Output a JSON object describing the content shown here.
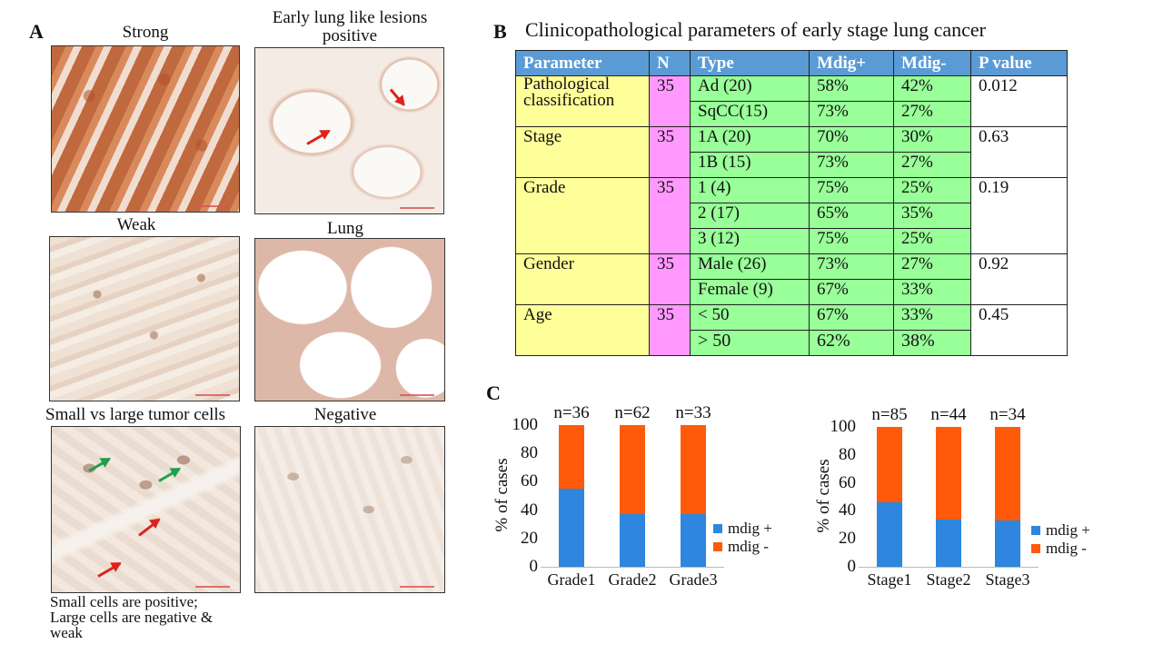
{
  "panel_a": {
    "letter": "A",
    "captions": {
      "strong": "Strong",
      "early": "Early lung like lesions positive",
      "weak": "Weak",
      "lung": "Lung",
      "small_large": "Small vs large tumor cells",
      "negative": "Negative"
    },
    "note_line1": "Small cells are positive;",
    "note_line2": "Large cells are negative &",
    "note_line3": "weak"
  },
  "panel_b": {
    "letter": "B",
    "title": "Clinicopathological parameters of early stage lung cancer",
    "headers": [
      "Parameter",
      "N",
      "Type",
      "Mdig+",
      "Mdig-",
      "P value"
    ],
    "groups": [
      {
        "parameter": "Pathological classification",
        "n": "35",
        "p": "0.012",
        "rows": [
          {
            "type": "Ad (20)",
            "plus": "58%",
            "minus": "42%"
          },
          {
            "type": "SqCC(15)",
            "plus": "73%",
            "minus": "27%"
          }
        ]
      },
      {
        "parameter": "Stage",
        "n": "35",
        "p": "0.63",
        "rows": [
          {
            "type": "1A (20)",
            "plus": "70%",
            "minus": "30%"
          },
          {
            "type": "1B (15)",
            "plus": "73%",
            "minus": "27%"
          }
        ]
      },
      {
        "parameter": "Grade",
        "n": "35",
        "p": "0.19",
        "rows": [
          {
            "type": "1 (4)",
            "plus": "75%",
            "minus": "25%"
          },
          {
            "type": "2 (17)",
            "plus": "65%",
            "minus": "35%"
          },
          {
            "type": "3 (12)",
            "plus": "75%",
            "minus": "25%"
          }
        ]
      },
      {
        "parameter": "Gender",
        "n": "35",
        "p": "0.92",
        "rows": [
          {
            "type": "Male (26)",
            "plus": "73%",
            "minus": "27%"
          },
          {
            "type": "Female (9)",
            "plus": "67%",
            "minus": "33%"
          }
        ]
      },
      {
        "parameter": "Age",
        "n": "35",
        "p": "0.45",
        "rows": [
          {
            "type": "< 50",
            "plus": "67%",
            "minus": "33%"
          },
          {
            "type": "> 50",
            "plus": "62%",
            "minus": "38%"
          }
        ]
      }
    ]
  },
  "panel_c": {
    "letter": "C"
  },
  "colors": {
    "mdig_plus": "#2e86de",
    "mdig_minus": "#ff5a0a"
  },
  "chart_data": [
    {
      "type": "bar",
      "stacked": true,
      "categories": [
        "Grade1",
        "Grade2",
        "Grade3"
      ],
      "n_labels": [
        "n=36",
        "n=62",
        "n=33"
      ],
      "series": [
        {
          "name": "mdig +",
          "values": [
            55,
            37,
            37
          ]
        },
        {
          "name": "mdig -",
          "values": [
            45,
            63,
            63
          ]
        }
      ],
      "ylabel": "% of cases",
      "ylim": [
        0,
        100
      ],
      "yticks": [
        "0",
        "20",
        "40",
        "60",
        "80",
        "100"
      ],
      "legend": "right"
    },
    {
      "type": "bar",
      "stacked": true,
      "categories": [
        "Stage1",
        "Stage2",
        "Stage3"
      ],
      "n_labels": [
        "n=85",
        "n=44",
        "n=34"
      ],
      "series": [
        {
          "name": "mdig +",
          "values": [
            46,
            34,
            33
          ]
        },
        {
          "name": "mdig -",
          "values": [
            54,
            66,
            67
          ]
        }
      ],
      "ylabel": "% of cases",
      "ylim": [
        0,
        100
      ],
      "yticks": [
        "0",
        "20",
        "40",
        "60",
        "80",
        "100"
      ],
      "legend": "right"
    }
  ]
}
